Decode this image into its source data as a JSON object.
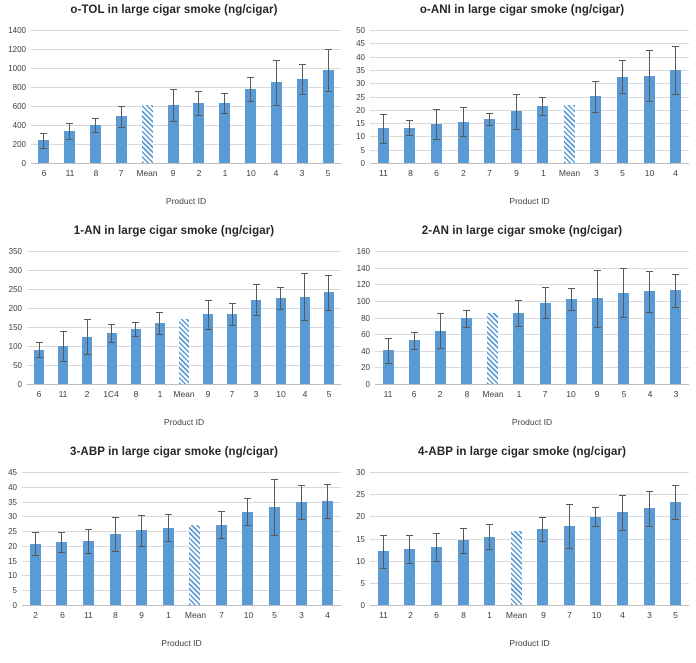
{
  "styles": {
    "bar_color": "#5b9bd5",
    "hatch_color": "#5b9bd5",
    "hatch_bg": "#ffffff",
    "gridline_color": "#d9d9d9",
    "axis_color": "#bfbfbf",
    "error_color": "#595959",
    "title_color": "#262626",
    "tick_color": "#404040"
  },
  "chart_data": [
    {
      "type": "bar",
      "title": "o-TOL in large cigar smoke (ng/cigar)",
      "xlabel": "Product ID",
      "ylabel": "",
      "ylim": [
        0,
        1400
      ],
      "ystep": 200,
      "grid": true,
      "legend": "none",
      "categories": [
        "6",
        "11",
        "8",
        "7",
        "Mean",
        "9",
        "2",
        "1",
        "10",
        "4",
        "3",
        "5"
      ],
      "values": [
        240,
        335,
        400,
        490,
        615,
        610,
        630,
        630,
        780,
        850,
        885,
        980
      ],
      "errors": [
        80,
        85,
        75,
        110,
        null,
        165,
        125,
        105,
        125,
        235,
        160,
        225
      ]
    },
    {
      "type": "bar",
      "title": "o-ANI in large cigar smoke (ng/cigar)",
      "xlabel": "Product ID",
      "ylabel": "",
      "ylim": [
        0,
        50
      ],
      "ystep": 5,
      "grid": true,
      "legend": "none",
      "categories": [
        "11",
        "8",
        "6",
        "2",
        "7",
        "9",
        "1",
        "Mean",
        "3",
        "5",
        "10",
        "4"
      ],
      "values": [
        13,
        13.3,
        14.8,
        15.6,
        16.5,
        19.4,
        21.4,
        21.9,
        25,
        32.4,
        32.8,
        34.9
      ],
      "errors": [
        5.3,
        2.7,
        5.6,
        5.4,
        2.2,
        6.6,
        3.3,
        null,
        5.9,
        6.2,
        9.5,
        9.1
      ]
    },
    {
      "type": "bar",
      "title": "1-AN in large cigar smoke (ng/cigar)",
      "xlabel": "Product ID",
      "ylabel": "",
      "ylim": [
        0,
        350
      ],
      "ystep": 50,
      "grid": true,
      "legend": "none",
      "categories": [
        "6",
        "11",
        "2",
        "1C4",
        "8",
        "1",
        "Mean",
        "9",
        "7",
        "3",
        "10",
        "4",
        "5"
      ],
      "values": [
        90,
        100,
        124,
        134,
        145,
        161,
        170,
        183,
        184,
        222,
        226,
        230,
        241
      ],
      "errors": [
        20,
        39,
        46,
        23,
        19,
        29,
        null,
        38,
        30,
        41,
        29,
        61,
        46
      ]
    },
    {
      "type": "bar",
      "title": "2-AN in large cigar smoke (ng/cigar)",
      "xlabel": "Product ID",
      "ylabel": "",
      "ylim": [
        0,
        160
      ],
      "ystep": 20,
      "grid": true,
      "legend": "none",
      "categories": [
        "11",
        "6",
        "2",
        "8",
        "Mean",
        "1",
        "7",
        "10",
        "9",
        "5",
        "4",
        "3"
      ],
      "values": [
        40.5,
        52.5,
        64,
        79,
        85,
        85,
        98,
        102.5,
        103,
        110,
        111.5,
        112.5
      ],
      "errors": [
        15,
        10,
        21,
        10,
        null,
        15.5,
        19,
        13.5,
        34,
        29.5,
        25,
        20
      ]
    },
    {
      "type": "bar",
      "title": "3-ABP in large cigar smoke (ng/cigar)",
      "xlabel": "Product ID",
      "ylabel": "",
      "ylim": [
        0,
        45
      ],
      "ystep": 5,
      "grid": true,
      "legend": "none",
      "categories": [
        "2",
        "6",
        "11",
        "8",
        "9",
        "1",
        "Mean",
        "7",
        "10",
        "5",
        "3",
        "4"
      ],
      "values": [
        20.7,
        21.3,
        21.6,
        24.1,
        25.3,
        26.2,
        26.9,
        27.2,
        31.6,
        33.3,
        34.8,
        35.2
      ],
      "errors": [
        3.9,
        3.4,
        4.1,
        5.7,
        5.3,
        4.7,
        null,
        4.6,
        4.7,
        9.5,
        5.8,
        5.6
      ]
    },
    {
      "type": "bar",
      "title": "4-ABP in large cigar smoke (ng/cigar)",
      "xlabel": "Product ID",
      "ylabel": "",
      "ylim": [
        0,
        30
      ],
      "ystep": 5,
      "grid": true,
      "legend": "none",
      "categories": [
        "11",
        "2",
        "6",
        "8",
        "1",
        "Mean",
        "9",
        "7",
        "10",
        "4",
        "3",
        "5"
      ],
      "values": [
        12.1,
        12.7,
        13.1,
        14.6,
        15.4,
        16.8,
        17.2,
        17.8,
        19.9,
        20.9,
        21.8,
        23.2
      ],
      "errors": [
        3.7,
        3.2,
        3.1,
        2.8,
        2.8,
        null,
        2.7,
        5,
        2.1,
        4,
        4,
        3.8
      ]
    }
  ]
}
